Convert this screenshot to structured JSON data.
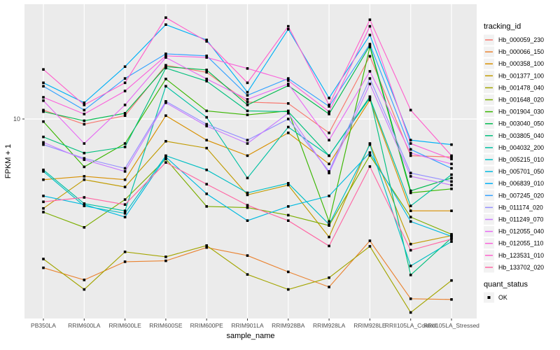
{
  "chart_data": {
    "type": "line",
    "title": "",
    "xlabel": "sample_name",
    "ylabel": "FPKM + 1",
    "y_scale": "log10",
    "ylim": [
      0.96,
      38.5
    ],
    "grid": "major-white-on-gray",
    "panel_bg": "#EBEBEB",
    "grid_color": "#FFFFFF",
    "point_color": "#000000",
    "axis_text_color": "#4D4D4D",
    "tick_color": "#333333",
    "y_ticks": [
      {
        "label": "10",
        "value": 10
      }
    ],
    "categories": [
      "PB350LA",
      "RRIM600LA",
      "RRIM600LE",
      "RRIM600SE",
      "RRIM600PE",
      "RRIM901LA",
      "RRIM928BA",
      "RRIM928LA",
      "RRIM928LE",
      "RRII105LA_Control",
      "RRII105LA_Stressed"
    ],
    "series": [
      {
        "name": "Hb_000059_230",
        "color": "#F8766D",
        "values": [
          11.1,
          9.4,
          10.4,
          18.8,
          17.3,
          12.2,
          12.0,
          8.5,
          20.9,
          6.5,
          6.4
        ]
      },
      {
        "name": "Hb_000066_150",
        "color": "#EA8331",
        "values": [
          1.74,
          1.51,
          1.87,
          1.89,
          2.21,
          2.01,
          1.66,
          1.39,
          2.39,
          1.21,
          1.2
        ]
      },
      {
        "name": "Hb_000358_100",
        "color": "#D89000",
        "values": [
          4.9,
          5.1,
          4.9,
          10.4,
          7.8,
          6.5,
          8.5,
          5.9,
          12.5,
          3.4,
          3.4
        ]
      },
      {
        "name": "Hb_001377_100",
        "color": "#C09B00",
        "values": [
          3.5,
          4.9,
          4.5,
          7.7,
          7.1,
          4.1,
          4.6,
          2.5,
          7.5,
          2.3,
          2.54
        ]
      },
      {
        "name": "Hb_001478_040",
        "color": "#A3A500",
        "values": [
          1.93,
          1.35,
          2.1,
          1.98,
          2.26,
          1.61,
          1.35,
          1.55,
          2.24,
          1.03,
          1.5
        ]
      },
      {
        "name": "Hb_001648_020",
        "color": "#7CAE00",
        "values": [
          3.35,
          2.8,
          3.88,
          6.25,
          3.58,
          3.53,
          3.23,
          2.86,
          6.52,
          3.16,
          2.58
        ]
      },
      {
        "name": "Hb_001904_030",
        "color": "#39B600",
        "values": [
          9.7,
          5.7,
          7.5,
          16.0,
          11.0,
          10.5,
          11.0,
          3.0,
          23.3,
          4.2,
          4.4
        ]
      },
      {
        "name": "Hb_003040_050",
        "color": "#00BB4E",
        "values": [
          10.9,
          9.8,
          10.7,
          18.5,
          17.8,
          11.8,
          14.8,
          10.6,
          23.7,
          4.3,
          5.0
        ]
      },
      {
        "name": "Hb_003805_040",
        "color": "#00BF7D",
        "values": [
          8.1,
          6.7,
          7.2,
          18.2,
          15.6,
          11.0,
          10.9,
          6.5,
          13.0,
          1.6,
          2.47
        ]
      },
      {
        "name": "Hb_004032_200",
        "color": "#00C1A3",
        "values": [
          5.5,
          3.7,
          3.4,
          14.7,
          10.2,
          5.0,
          9.1,
          6.5,
          12.8,
          3.6,
          5.2
        ]
      },
      {
        "name": "Hb_005215_010",
        "color": "#00BFC4",
        "values": [
          5.4,
          3.6,
          3.3,
          6.5,
          5.5,
          4.2,
          4.7,
          2.9,
          7.4,
          1.78,
          2.37
        ]
      },
      {
        "name": "Hb_005701_050",
        "color": "#00BAE0",
        "values": [
          4.05,
          3.66,
          3.16,
          6.4,
          4.15,
          3.03,
          3.58,
          4.05,
          6.74,
          3.0,
          2.52
        ]
      },
      {
        "name": "Hb_006839_010",
        "color": "#00B0F6",
        "values": [
          15.3,
          12.1,
          18.5,
          30.3,
          25.3,
          13.7,
          28.7,
          12.8,
          26.8,
          7.8,
          7.4
        ]
      },
      {
        "name": "Hb_007245_020",
        "color": "#35A2FF",
        "values": [
          14.7,
          11.1,
          16.1,
          21.5,
          21.0,
          13.2,
          16.1,
          11.6,
          24.1,
          7.0,
          5.6
        ]
      },
      {
        "name": "Hb_011174_020",
        "color": "#9590FF",
        "values": [
          7.4,
          6.3,
          5.6,
          12.3,
          9.4,
          7.8,
          10.0,
          5.4,
          16.1,
          5.3,
          4.8
        ]
      },
      {
        "name": "Hb_011249_070",
        "color": "#C77CFF",
        "values": [
          7.6,
          6.2,
          5.4,
          12.1,
          9.2,
          7.5,
          10.7,
          5.3,
          15.1,
          5.1,
          4.6
        ]
      },
      {
        "name": "Hb_012055_040",
        "color": "#E76BF3",
        "values": [
          12.4,
          7.5,
          11.8,
          20.6,
          16.0,
          12.6,
          15.1,
          7.8,
          17.5,
          6.7,
          5.9
        ]
      },
      {
        "name": "Hb_012055_110",
        "color": "#FA62DB",
        "values": [
          12.9,
          10.6,
          13.9,
          21.0,
          20.6,
          18.1,
          15.7,
          10.9,
          29.7,
          7.5,
          6.25
        ]
      },
      {
        "name": "Hb_123531_010",
        "color": "#FF61CC",
        "values": [
          17.9,
          11.8,
          15.3,
          32.9,
          24.9,
          15.3,
          29.7,
          11.8,
          32.1,
          11.1,
          6.5
        ]
      },
      {
        "name": "Hb_133702_020",
        "color": "#FF67A4",
        "values": [
          3.78,
          3.98,
          3.66,
          6.0,
          4.65,
          3.63,
          3.03,
          2.25,
          5.72,
          2.14,
          2.44
        ]
      }
    ],
    "legend": {
      "position": "right",
      "title": "tracking_id",
      "key_fill": "#F2F2F2",
      "quant_status_title": "quant_status",
      "quant_status_items": [
        {
          "label": "OK",
          "shape": "black-square"
        }
      ]
    }
  }
}
